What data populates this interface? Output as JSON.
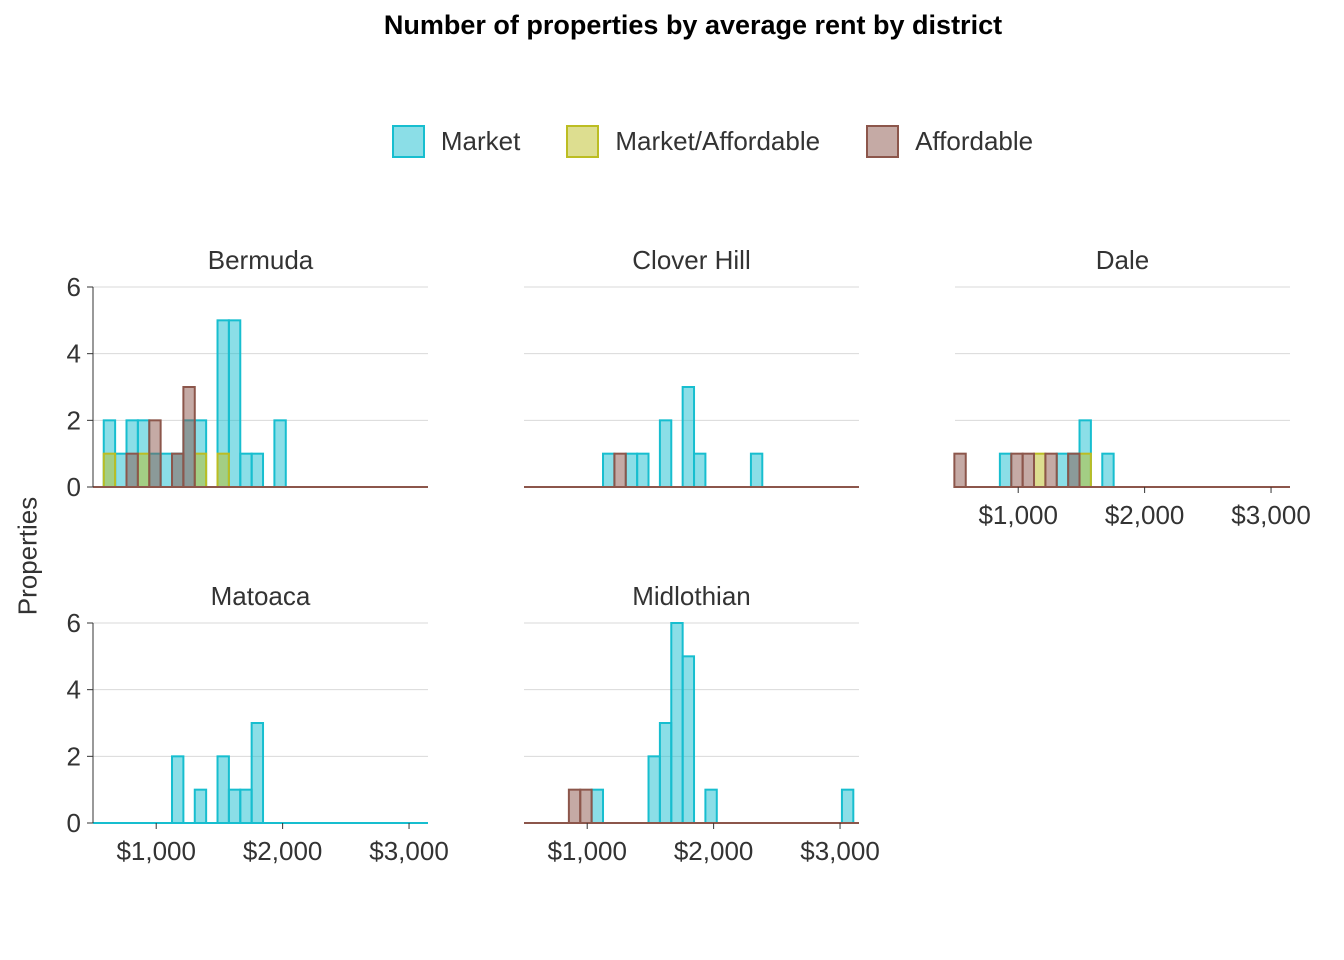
{
  "chart_data": {
    "type": "bar",
    "title": "Number of properties by average rent by district",
    "ylabel": "Properties",
    "xlabel": "",
    "bin_width": 90,
    "xlim": [
      500,
      3150
    ],
    "ylim": [
      0,
      6
    ],
    "x_ticks": [
      1000,
      2000,
      3000
    ],
    "x_tick_labels": [
      "$1,000",
      "$2,000",
      "$3,000"
    ],
    "y_ticks": [
      0,
      2,
      4,
      6
    ],
    "y_tick_labels": [
      "0",
      "2",
      "4",
      "6"
    ],
    "grid": true,
    "legend_position": "top",
    "series_styles": [
      {
        "name": "Market",
        "fill": "#17becf",
        "stroke": "#17becf"
      },
      {
        "name": "Market/Affordable",
        "fill": "#bcbd22",
        "stroke": "#bcbd22"
      },
      {
        "name": "Affordable",
        "fill": "#8c564b",
        "stroke": "#8c564b"
      }
    ],
    "panels": [
      {
        "name": "Bermuda",
        "series": [
          {
            "name": "Market",
            "bins": [
              {
                "x": 630,
                "y": 2
              },
              {
                "x": 720,
                "y": 1
              },
              {
                "x": 810,
                "y": 2
              },
              {
                "x": 900,
                "y": 2
              },
              {
                "x": 990,
                "y": 1
              },
              {
                "x": 1080,
                "y": 1
              },
              {
                "x": 1170,
                "y": 1
              },
              {
                "x": 1260,
                "y": 2
              },
              {
                "x": 1350,
                "y": 2
              },
              {
                "x": 1530,
                "y": 5
              },
              {
                "x": 1620,
                "y": 5
              },
              {
                "x": 1710,
                "y": 1
              },
              {
                "x": 1800,
                "y": 1
              },
              {
                "x": 1980,
                "y": 2
              }
            ]
          },
          {
            "name": "Market/Affordable",
            "bins": [
              {
                "x": 630,
                "y": 1
              },
              {
                "x": 900,
                "y": 1
              },
              {
                "x": 1350,
                "y": 1
              },
              {
                "x": 1530,
                "y": 1
              }
            ]
          },
          {
            "name": "Affordable",
            "bins": [
              {
                "x": 810,
                "y": 1
              },
              {
                "x": 990,
                "y": 2
              },
              {
                "x": 1170,
                "y": 1
              },
              {
                "x": 1260,
                "y": 3
              }
            ]
          }
        ]
      },
      {
        "name": "Clover Hill",
        "series": [
          {
            "name": "Market",
            "bins": [
              {
                "x": 1170,
                "y": 1
              },
              {
                "x": 1350,
                "y": 1
              },
              {
                "x": 1440,
                "y": 1
              },
              {
                "x": 1620,
                "y": 2
              },
              {
                "x": 1800,
                "y": 3
              },
              {
                "x": 1890,
                "y": 1
              },
              {
                "x": 2340,
                "y": 1
              }
            ]
          },
          {
            "name": "Market/Affordable",
            "bins": []
          },
          {
            "name": "Affordable",
            "bins": [
              {
                "x": 1260,
                "y": 1
              }
            ]
          }
        ]
      },
      {
        "name": "Dale",
        "series": [
          {
            "name": "Market",
            "bins": [
              {
                "x": 900,
                "y": 1
              },
              {
                "x": 1350,
                "y": 1
              },
              {
                "x": 1440,
                "y": 1
              },
              {
                "x": 1530,
                "y": 2
              },
              {
                "x": 1710,
                "y": 1
              }
            ]
          },
          {
            "name": "Market/Affordable",
            "bins": [
              {
                "x": 1170,
                "y": 1
              },
              {
                "x": 1530,
                "y": 1
              }
            ]
          },
          {
            "name": "Affordable",
            "bins": [
              {
                "x": 540,
                "y": 1
              },
              {
                "x": 990,
                "y": 1
              },
              {
                "x": 1080,
                "y": 1
              },
              {
                "x": 1260,
                "y": 1
              },
              {
                "x": 1440,
                "y": 1
              }
            ]
          }
        ]
      },
      {
        "name": "Matoaca",
        "series": [
          {
            "name": "Market",
            "bins": [
              {
                "x": 1170,
                "y": 2
              },
              {
                "x": 1350,
                "y": 1
              },
              {
                "x": 1530,
                "y": 2
              },
              {
                "x": 1620,
                "y": 1
              },
              {
                "x": 1710,
                "y": 1
              },
              {
                "x": 1800,
                "y": 3
              }
            ]
          },
          {
            "name": "Market/Affordable",
            "bins": []
          },
          {
            "name": "Affordable",
            "bins": []
          }
        ]
      },
      {
        "name": "Midlothian",
        "series": [
          {
            "name": "Market",
            "bins": [
              {
                "x": 1080,
                "y": 1
              },
              {
                "x": 1530,
                "y": 2
              },
              {
                "x": 1620,
                "y": 3
              },
              {
                "x": 1710,
                "y": 6
              },
              {
                "x": 1800,
                "y": 5
              },
              {
                "x": 1980,
                "y": 1
              },
              {
                "x": 3060,
                "y": 1
              }
            ]
          },
          {
            "name": "Market/Affordable",
            "bins": []
          },
          {
            "name": "Affordable",
            "bins": [
              {
                "x": 900,
                "y": 1
              },
              {
                "x": 990,
                "y": 1
              }
            ]
          }
        ]
      }
    ]
  }
}
